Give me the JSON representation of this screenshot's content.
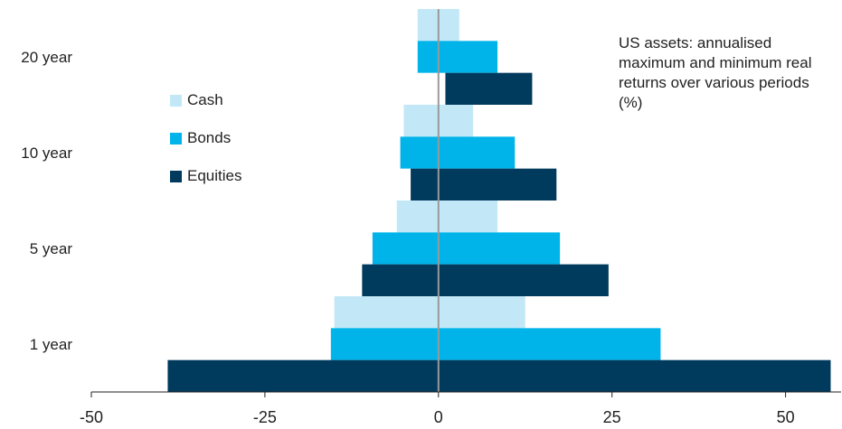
{
  "chart_data": {
    "type": "bar",
    "orientation": "horizontal",
    "title": "US assets: annualised maximum and minimum real returns over various periods (%)",
    "categories": [
      "20 year",
      "10 year",
      "5 year",
      "1 year"
    ],
    "series": [
      {
        "name": "Cash",
        "color": "#c2e8f7",
        "min": [
          -3,
          -5,
          -6,
          -15
        ],
        "max": [
          3,
          5,
          8.5,
          12.5
        ]
      },
      {
        "name": "Bonds",
        "color": "#00b4ea",
        "min": [
          -3,
          -5.5,
          -9.5,
          -15.5
        ],
        "max": [
          8.5,
          11,
          17.5,
          32
        ]
      },
      {
        "name": "Equities",
        "color": "#003a5d",
        "min": [
          1,
          -4,
          -11,
          -39
        ],
        "max": [
          13.5,
          17,
          24.5,
          56.5
        ]
      }
    ],
    "xlim": [
      -50,
      58
    ],
    "xticks": [
      "-50",
      "-25",
      "0",
      "25",
      "50"
    ],
    "xtick_values": [
      -50,
      -25,
      0,
      25,
      50
    ],
    "legend_position": "left",
    "grid": false
  }
}
